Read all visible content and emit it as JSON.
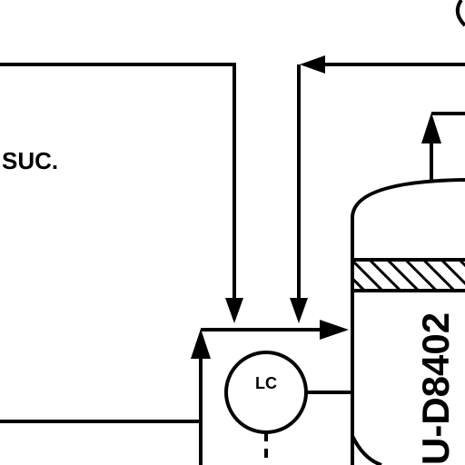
{
  "diagram": {
    "suction_label": "SUC.",
    "controller": {
      "tag": "LC"
    },
    "vessel": {
      "tag": "U-D8402"
    }
  },
  "colors": {
    "line": "#000000",
    "background": "#ffffff"
  }
}
